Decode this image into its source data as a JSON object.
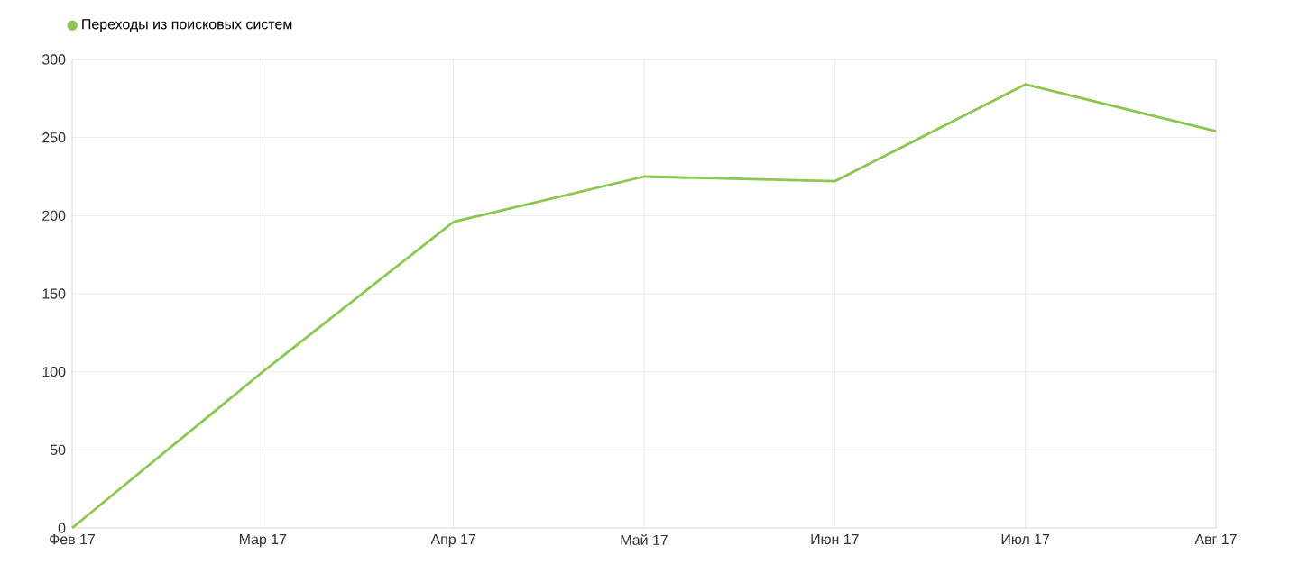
{
  "chart_data": {
    "type": "line",
    "categories": [
      "Фев 17",
      "Мар 17",
      "Апр 17",
      "Май 17",
      "Июн 17",
      "Июл 17",
      "Авг 17"
    ],
    "series": [
      {
        "name": "Переходы из поисковых систем",
        "color": "#8cc751",
        "values": [
          0,
          100,
          196,
          225,
          222,
          284,
          254
        ]
      }
    ],
    "ylim": [
      0,
      300
    ],
    "yticks": [
      0,
      50,
      100,
      150,
      200,
      250,
      300
    ],
    "grid": true,
    "legend": "top left",
    "line_style": "solid"
  }
}
